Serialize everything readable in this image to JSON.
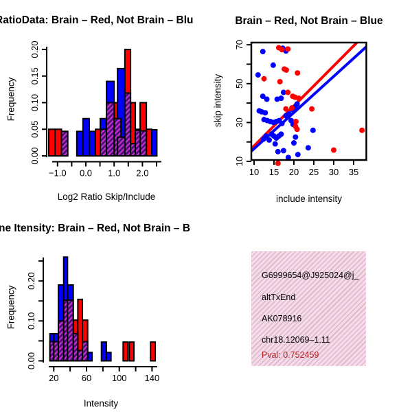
{
  "colors": {
    "red": "#ff0000",
    "blue": "#0000ff",
    "purple_dark": "#45106e",
    "purple_bright": "#c62fd4",
    "black": "#000000",
    "pval_red": "#b22222",
    "info_box_bg": "#f8d8ee"
  },
  "chart_data": [
    {
      "id": "log2ratio_hist",
      "type": "bar",
      "subtype": "overlaid-histograms",
      "title": "RatioData: Brain – Red, Not Brain – Blu",
      "xlabel": "Log2 Ratio Skip/Include",
      "ylabel": "Frequency",
      "xlim": [
        -1.45,
        2.6
      ],
      "ylim": [
        0,
        0.21
      ],
      "x_ticks": [
        -1.0,
        -0.5,
        0.0,
        0.5,
        1.0,
        1.5,
        2.0,
        2.5
      ],
      "x_tick_labels": {
        "-1": "−1.0",
        "0": "0.0",
        "1": "1.0",
        "2": "2.0"
      },
      "y_ticks": [
        0,
        0.05,
        0.1,
        0.15,
        0.2
      ],
      "y_tick_labels": {
        "0": "0.00",
        "0.05": "0.05",
        "0.1": "0.10",
        "0.15": "0.15",
        "0.2": "0.20"
      },
      "legend_meaning": {
        "red": "Brain",
        "blue": "Not Brain",
        "purple_hatch": "overlap"
      },
      "bars": [
        {
          "x0": -1.31,
          "x1": -1.09,
          "color": "red",
          "h": 0.05,
          "o": 0
        },
        {
          "x0": -1.09,
          "x1": -0.86,
          "color": "red",
          "h": 0.05,
          "o": 0
        },
        {
          "x0": -0.86,
          "x1": -0.64,
          "color": "red",
          "h": 0.046,
          "o": 0.046
        },
        {
          "x0": -0.32,
          "x1": -0.1,
          "color": "blue",
          "h": 0.046,
          "o": 0
        },
        {
          "x0": -0.1,
          "x1": 0.12,
          "color": "blue",
          "h": 0.07,
          "o": 0
        },
        {
          "x0": 0.12,
          "x1": 0.34,
          "color": "blue",
          "h": 0.046,
          "o": 0
        },
        {
          "x0": 0.34,
          "x1": 0.56,
          "color": "red",
          "h": 0.05,
          "o": 0
        },
        {
          "x0": 0.51,
          "x1": 0.73,
          "color": "blue",
          "h": 0.07,
          "o": 0.05
        },
        {
          "x0": 0.73,
          "x1": 1.0,
          "color": "blue",
          "h": 0.14,
          "o": 0.1
        },
        {
          "x0": 1.0,
          "x1": 1.24,
          "color": "red",
          "h": 0.1,
          "o": 0.07
        },
        {
          "x0": 1.12,
          "x1": 1.38,
          "color": "blue",
          "h": 0.164,
          "o": 0.035
        },
        {
          "x0": 1.38,
          "x1": 1.58,
          "color": "red",
          "h": 0.2,
          "o": 0.118
        },
        {
          "x0": 1.58,
          "x1": 1.75,
          "color": "red",
          "h": 0.1,
          "o": 0.023
        },
        {
          "x0": 1.75,
          "x1": 1.92,
          "color": "red",
          "h": 0.05,
          "o": 0.048
        },
        {
          "x0": 1.92,
          "x1": 2.14,
          "color": "red",
          "h": 0.1,
          "o": 0.047
        },
        {
          "x0": 2.14,
          "x1": 2.33,
          "color": "red",
          "h": 0.05,
          "o": 0
        },
        {
          "x0": 2.33,
          "x1": 2.51,
          "color": "blue",
          "h": 0.049,
          "o": 0
        }
      ]
    },
    {
      "id": "intensity_scatter",
      "type": "scatter",
      "title": "Brain – Red, Not Brain – Blue",
      "xlabel": "include intensity",
      "ylabel": "skip intensity",
      "xlim": [
        9.3,
        38.2
      ],
      "ylim": [
        9.3,
        71.3
      ],
      "x_ticks": [
        10,
        15,
        20,
        25,
        30,
        35
      ],
      "x_tick_labels": {
        "10": "10",
        "15": "15",
        "20": "20",
        "25": "25",
        "30": "30",
        "35": "35"
      },
      "y_ticks": [
        10,
        20,
        30,
        40,
        50,
        60,
        70
      ],
      "y_tick_labels": {
        "10": "10",
        "30": "30",
        "50": "50",
        "70": "70"
      },
      "series": [
        {
          "name": "Not Brain",
          "color": "blue",
          "points": [
            [
              12.2,
              66.5
            ],
            [
              17.2,
              68.2
            ],
            [
              18.0,
              66.8
            ],
            [
              14.8,
              59.5
            ],
            [
              11.0,
              54.5
            ],
            [
              12.2,
              43.5
            ],
            [
              13.2,
              42.0
            ],
            [
              15.8,
              42.0
            ],
            [
              16.8,
              42.5
            ],
            [
              17.4,
              45.5
            ],
            [
              11.3,
              36.0
            ],
            [
              11.9,
              35.5
            ],
            [
              12.8,
              35.0
            ],
            [
              12.5,
              31.5
            ],
            [
              13.3,
              31.0
            ],
            [
              14.1,
              30.5
            ],
            [
              14.9,
              30.0
            ],
            [
              15.6,
              30.5
            ],
            [
              16.3,
              31.0
            ],
            [
              17.0,
              29.5
            ],
            [
              18.0,
              33.5
            ],
            [
              18.8,
              34.5
            ],
            [
              19.8,
              36.5
            ],
            [
              20.3,
              38.0
            ],
            [
              20.8,
              39.5
            ],
            [
              19.3,
              31.0
            ],
            [
              19.8,
              29.0
            ],
            [
              12.4,
              21.5
            ],
            [
              13.0,
              23.0
            ],
            [
              13.8,
              21.0
            ],
            [
              14.4,
              24.0
            ],
            [
              15.0,
              23.0
            ],
            [
              15.6,
              22.0
            ],
            [
              16.2,
              23.0
            ],
            [
              16.8,
              24.0
            ],
            [
              15.3,
              19.0
            ],
            [
              16.0,
              15.0
            ],
            [
              17.4,
              15.5
            ],
            [
              18.6,
              12.0
            ],
            [
              20.0,
              19.5
            ],
            [
              20.4,
              22.5
            ],
            [
              21.0,
              13.5
            ],
            [
              23.6,
              17.0
            ],
            [
              24.8,
              26.0
            ]
          ]
        },
        {
          "name": "Brain",
          "color": "red",
          "points": [
            [
              16.2,
              68.5
            ],
            [
              17.0,
              67.5
            ],
            [
              18.5,
              67.8
            ],
            [
              17.6,
              57.5
            ],
            [
              18.1,
              57.0
            ],
            [
              20.9,
              55.5
            ],
            [
              12.5,
              52.5
            ],
            [
              16.5,
              51.0
            ],
            [
              18.5,
              45.5
            ],
            [
              19.7,
              43.5
            ],
            [
              20.3,
              43.0
            ],
            [
              21.2,
              42.5
            ],
            [
              18.0,
              37.0
            ],
            [
              19.5,
              37.5
            ],
            [
              24.5,
              37.0
            ],
            [
              20.5,
              30.5
            ],
            [
              20.4,
              28.0
            ],
            [
              20.8,
              26.5
            ],
            [
              30.0,
              15.8
            ],
            [
              16.0,
              9.0
            ],
            [
              37.1,
              26.0
            ]
          ]
        }
      ],
      "lines": [
        {
          "color": "red",
          "x1": 9.3,
          "y1": 16.5,
          "x2": 35.9,
          "y2": 71.3
        },
        {
          "color": "blue",
          "x1": 9.3,
          "y1": 15.2,
          "x2": 38.2,
          "y2": 69.0
        }
      ]
    },
    {
      "id": "intensity_hist",
      "type": "bar",
      "subtype": "overlaid-histograms",
      "title": "ne Itensity: Brain – Red, Not Brain – B",
      "xlabel": "Intensity",
      "ylabel": "Frequency",
      "xlim": [
        10,
        148
      ],
      "ylim": [
        0,
        0.27
      ],
      "x_ticks": [
        20,
        40,
        60,
        80,
        100,
        120,
        140
      ],
      "x_tick_labels": {
        "20": "20",
        "60": "60",
        "100": "100",
        "140": "140"
      },
      "y_ticks": [
        0,
        0.05,
        0.1,
        0.15,
        0.2,
        0.25
      ],
      "y_tick_labels": {
        "0": "0.00",
        "0.1": "0.10",
        "0.2": "0.20"
      },
      "legend_meaning": {
        "red": "Brain",
        "blue": "Not Brain",
        "purple_hatch": "overlap"
      },
      "bars": [
        {
          "x0": 15.3,
          "x1": 20.0,
          "color": "blue",
          "h": 0.068,
          "o": 0.048
        },
        {
          "x0": 20.0,
          "x1": 25.6,
          "color": "blue",
          "h": 0.068,
          "o": 0.048
        },
        {
          "x0": 25.6,
          "x1": 32.1,
          "color": "blue",
          "h": 0.19,
          "o": 0.1
        },
        {
          "x0": 32.1,
          "x1": 36.8,
          "color": "blue",
          "h": 0.26,
          "o": 0.152
        },
        {
          "x0": 36.8,
          "x1": 43.8,
          "color": "blue",
          "h": 0.19,
          "o": 0.152
        },
        {
          "x0": 43.8,
          "x1": 49.4,
          "color": "red",
          "h": 0.102,
          "o": 0.068
        },
        {
          "x0": 49.4,
          "x1": 55.0,
          "color": "red",
          "h": 0.154,
          "o": 0.026
        },
        {
          "x0": 55.0,
          "x1": 61.4,
          "color": "red",
          "h": 0.102,
          "o": 0.048
        },
        {
          "x0": 61.4,
          "x1": 66.7,
          "color": "blue",
          "h": 0.021,
          "o": 0
        },
        {
          "x0": 78.2,
          "x1": 84.3,
          "color": "blue",
          "h": 0.047,
          "o": 0
        },
        {
          "x0": 84.3,
          "x1": 89.9,
          "color": "blue",
          "h": 0.021,
          "o": 0
        },
        {
          "x0": 104.7,
          "x1": 110.3,
          "color": "red",
          "h": 0.047,
          "o": 0
        },
        {
          "x0": 112.2,
          "x1": 117.9,
          "color": "red",
          "h": 0.047,
          "o": 0
        },
        {
          "x0": 138.2,
          "x1": 143.9,
          "color": "red",
          "h": 0.047,
          "o": 0
        }
      ]
    }
  ],
  "info_box": {
    "lines": [
      "G6999654@J925024@j_",
      "altTxEnd",
      "AK078916",
      "chr18.12069–1.11",
      "Pval: 0.752459"
    ]
  }
}
